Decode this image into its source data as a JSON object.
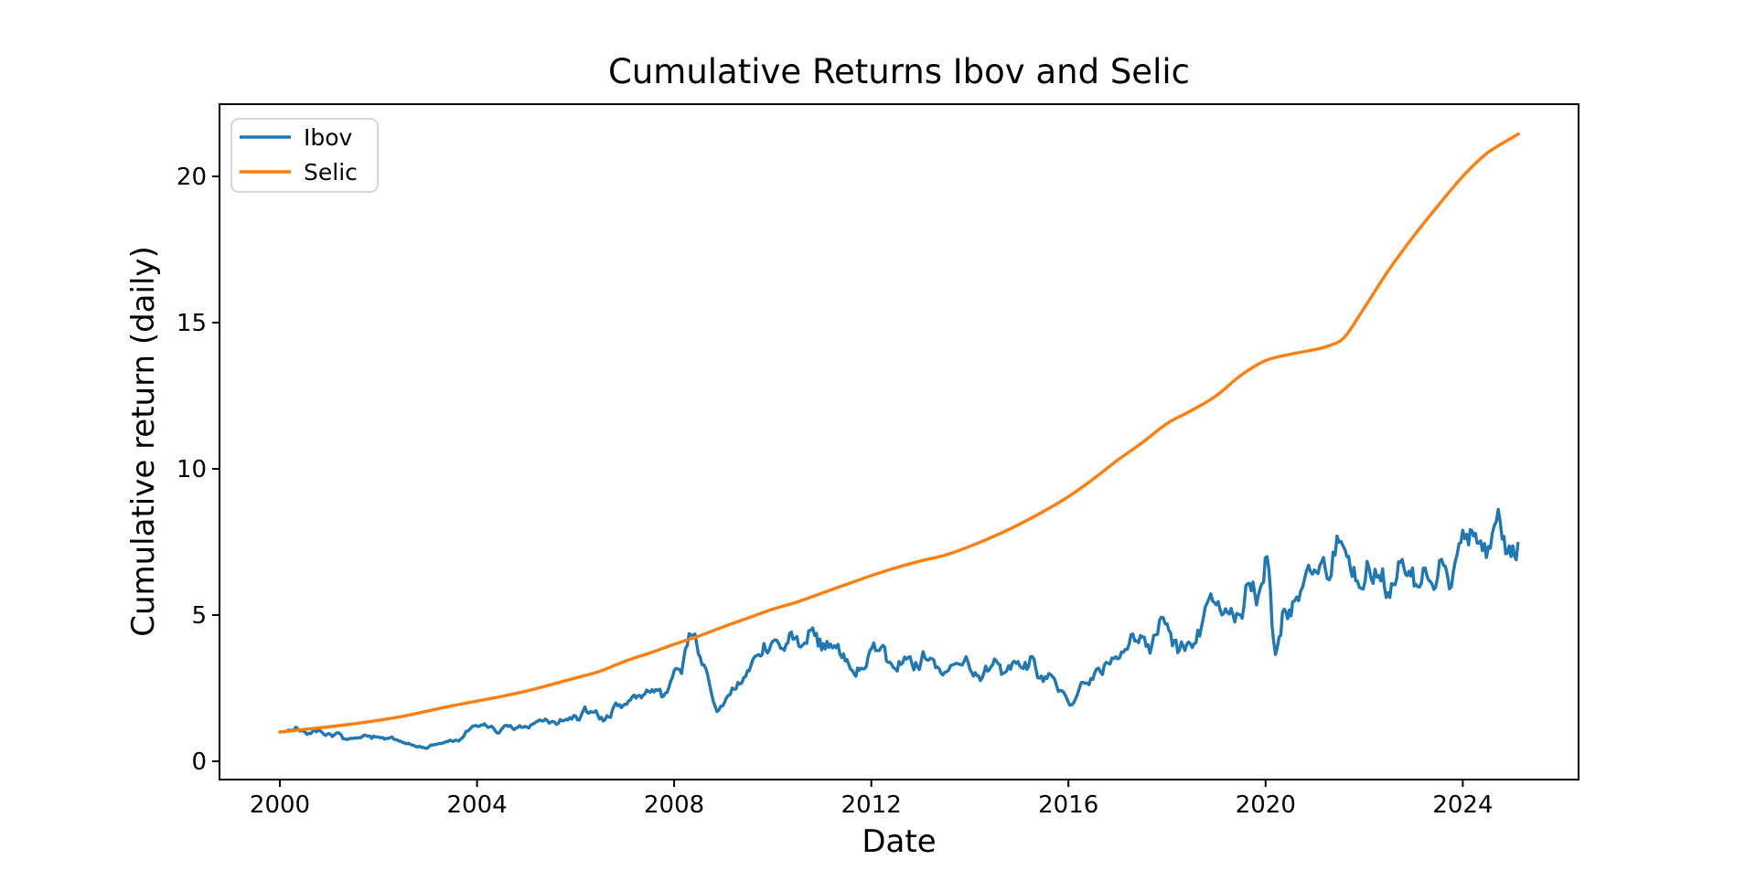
{
  "chart_data": {
    "type": "line",
    "title": "Cumulative Returns Ibov and Selic",
    "xlabel": "Date",
    "ylabel": "Cumulative return (daily)",
    "xlim": [
      1998.775,
      2026.35
    ],
    "ylim": [
      -0.625,
      22.47
    ],
    "x_ticks": [
      {
        "value": 2000,
        "label": "2000"
      },
      {
        "value": 2004,
        "label": "2004"
      },
      {
        "value": 2008,
        "label": "2008"
      },
      {
        "value": 2012,
        "label": "2012"
      },
      {
        "value": 2016,
        "label": "2016"
      },
      {
        "value": 2020,
        "label": "2020"
      },
      {
        "value": 2024,
        "label": "2024"
      }
    ],
    "y_ticks": [
      {
        "value": 0,
        "label": "0"
      },
      {
        "value": 5,
        "label": "5"
      },
      {
        "value": 10,
        "label": "10"
      },
      {
        "value": 15,
        "label": "15"
      },
      {
        "value": 20,
        "label": "20"
      }
    ],
    "grid": false,
    "legend_position": "upper left",
    "series": [
      {
        "name": "Ibov",
        "color": "#1f77b4",
        "style": "noisy",
        "noise": {
          "seed": 7,
          "volatility": 0.26
        },
        "points": [
          [
            2000.0,
            1.0
          ],
          [
            2000.25,
            1.06
          ],
          [
            2000.55,
            0.92
          ],
          [
            2000.85,
            1.0
          ],
          [
            2001.1,
            0.9
          ],
          [
            2001.5,
            0.78
          ],
          [
            2001.75,
            0.88
          ],
          [
            2002.05,
            0.8
          ],
          [
            2002.35,
            0.74
          ],
          [
            2002.6,
            0.62
          ],
          [
            2002.95,
            0.45
          ],
          [
            2003.3,
            0.62
          ],
          [
            2003.7,
            0.8
          ],
          [
            2004.05,
            1.2
          ],
          [
            2004.15,
            1.28
          ],
          [
            2004.45,
            0.97
          ],
          [
            2004.75,
            1.08
          ],
          [
            2005.05,
            1.14
          ],
          [
            2005.35,
            1.38
          ],
          [
            2005.65,
            1.3
          ],
          [
            2006.0,
            1.55
          ],
          [
            2006.3,
            1.7
          ],
          [
            2006.6,
            1.43
          ],
          [
            2007.0,
            1.95
          ],
          [
            2007.3,
            2.25
          ],
          [
            2007.55,
            2.45
          ],
          [
            2007.75,
            2.2
          ],
          [
            2008.0,
            3.1
          ],
          [
            2008.15,
            3.0
          ],
          [
            2008.42,
            4.35
          ],
          [
            2008.6,
            3.3
          ],
          [
            2008.87,
            1.7
          ],
          [
            2009.1,
            2.25
          ],
          [
            2009.45,
            2.9
          ],
          [
            2009.75,
            3.6
          ],
          [
            2010.0,
            4.1
          ],
          [
            2010.2,
            3.85
          ],
          [
            2010.45,
            4.2
          ],
          [
            2010.65,
            4.05
          ],
          [
            2010.85,
            4.3
          ],
          [
            2011.1,
            4.1
          ],
          [
            2011.4,
            3.55
          ],
          [
            2011.65,
            3.0
          ],
          [
            2011.9,
            3.25
          ],
          [
            2012.2,
            3.9
          ],
          [
            2012.45,
            3.2
          ],
          [
            2012.75,
            3.55
          ],
          [
            2013.05,
            3.75
          ],
          [
            2013.45,
            2.95
          ],
          [
            2013.65,
            3.3
          ],
          [
            2014.0,
            3.15
          ],
          [
            2014.25,
            2.85
          ],
          [
            2014.5,
            3.5
          ],
          [
            2014.75,
            3.1
          ],
          [
            2015.05,
            3.2
          ],
          [
            2015.3,
            3.5
          ],
          [
            2015.6,
            3.0
          ],
          [
            2015.95,
            2.2
          ],
          [
            2016.3,
            2.7
          ],
          [
            2016.65,
            3.05
          ],
          [
            2017.0,
            3.5
          ],
          [
            2017.5,
            4.25
          ],
          [
            2018.0,
            4.7
          ],
          [
            2018.4,
            4.0
          ],
          [
            2018.7,
            4.6
          ],
          [
            2019.0,
            5.35
          ],
          [
            2019.15,
            5.05
          ],
          [
            2019.6,
            6.0
          ],
          [
            2019.78,
            5.75
          ],
          [
            2020.03,
            7.0
          ],
          [
            2020.2,
            3.65
          ],
          [
            2020.38,
            5.2
          ],
          [
            2020.55,
            5.45
          ],
          [
            2020.75,
            5.95
          ],
          [
            2020.95,
            6.4
          ],
          [
            2021.1,
            6.7
          ],
          [
            2021.25,
            6.25
          ],
          [
            2021.45,
            7.7
          ],
          [
            2021.65,
            7.0
          ],
          [
            2021.9,
            5.95
          ],
          [
            2022.1,
            6.6
          ],
          [
            2022.3,
            6.35
          ],
          [
            2022.52,
            5.6
          ],
          [
            2022.77,
            6.9
          ],
          [
            2023.05,
            6.05
          ],
          [
            2023.2,
            6.6
          ],
          [
            2023.45,
            5.95
          ],
          [
            2023.65,
            6.65
          ],
          [
            2023.85,
            6.85
          ],
          [
            2024.0,
            7.9
          ],
          [
            2024.12,
            7.4
          ],
          [
            2024.22,
            7.7
          ],
          [
            2024.4,
            7.2
          ],
          [
            2024.64,
            8.05
          ],
          [
            2024.8,
            7.6
          ],
          [
            2024.98,
            7.0
          ],
          [
            2025.12,
            7.45
          ]
        ]
      },
      {
        "name": "Selic",
        "color": "#ff7f0e",
        "style": "smooth",
        "points": [
          [
            2000.0,
            1.0
          ],
          [
            2000.5,
            1.09
          ],
          [
            2001.0,
            1.18
          ],
          [
            2001.5,
            1.28
          ],
          [
            2002.0,
            1.4
          ],
          [
            2002.5,
            1.54
          ],
          [
            2003.0,
            1.72
          ],
          [
            2003.5,
            1.9
          ],
          [
            2004.0,
            2.06
          ],
          [
            2004.5,
            2.22
          ],
          [
            2005.0,
            2.4
          ],
          [
            2005.5,
            2.62
          ],
          [
            2006.0,
            2.85
          ],
          [
            2006.5,
            3.08
          ],
          [
            2007.0,
            3.42
          ],
          [
            2007.5,
            3.7
          ],
          [
            2008.0,
            4.0
          ],
          [
            2008.5,
            4.28
          ],
          [
            2009.0,
            4.6
          ],
          [
            2009.5,
            4.9
          ],
          [
            2010.0,
            5.2
          ],
          [
            2010.5,
            5.45
          ],
          [
            2011.0,
            5.75
          ],
          [
            2011.5,
            6.05
          ],
          [
            2012.0,
            6.35
          ],
          [
            2012.5,
            6.62
          ],
          [
            2013.0,
            6.85
          ],
          [
            2013.5,
            7.05
          ],
          [
            2014.0,
            7.35
          ],
          [
            2014.5,
            7.7
          ],
          [
            2015.0,
            8.1
          ],
          [
            2015.5,
            8.55
          ],
          [
            2016.0,
            9.05
          ],
          [
            2016.5,
            9.65
          ],
          [
            2017.0,
            10.3
          ],
          [
            2017.5,
            10.9
          ],
          [
            2018.0,
            11.55
          ],
          [
            2018.5,
            12.0
          ],
          [
            2019.0,
            12.5
          ],
          [
            2019.5,
            13.2
          ],
          [
            2020.0,
            13.7
          ],
          [
            2020.5,
            13.92
          ],
          [
            2021.0,
            14.08
          ],
          [
            2021.3,
            14.22
          ],
          [
            2021.6,
            14.5
          ],
          [
            2022.0,
            15.5
          ],
          [
            2022.5,
            16.8
          ],
          [
            2023.0,
            17.95
          ],
          [
            2023.5,
            19.0
          ],
          [
            2024.0,
            20.0
          ],
          [
            2024.5,
            20.8
          ],
          [
            2025.13,
            21.45
          ]
        ]
      }
    ]
  },
  "style": {
    "background": "#ffffff",
    "spine_color": "#000000",
    "tick_color": "#000000",
    "legend_border_color": "#cccccc",
    "legend_background": "#ffffff"
  }
}
